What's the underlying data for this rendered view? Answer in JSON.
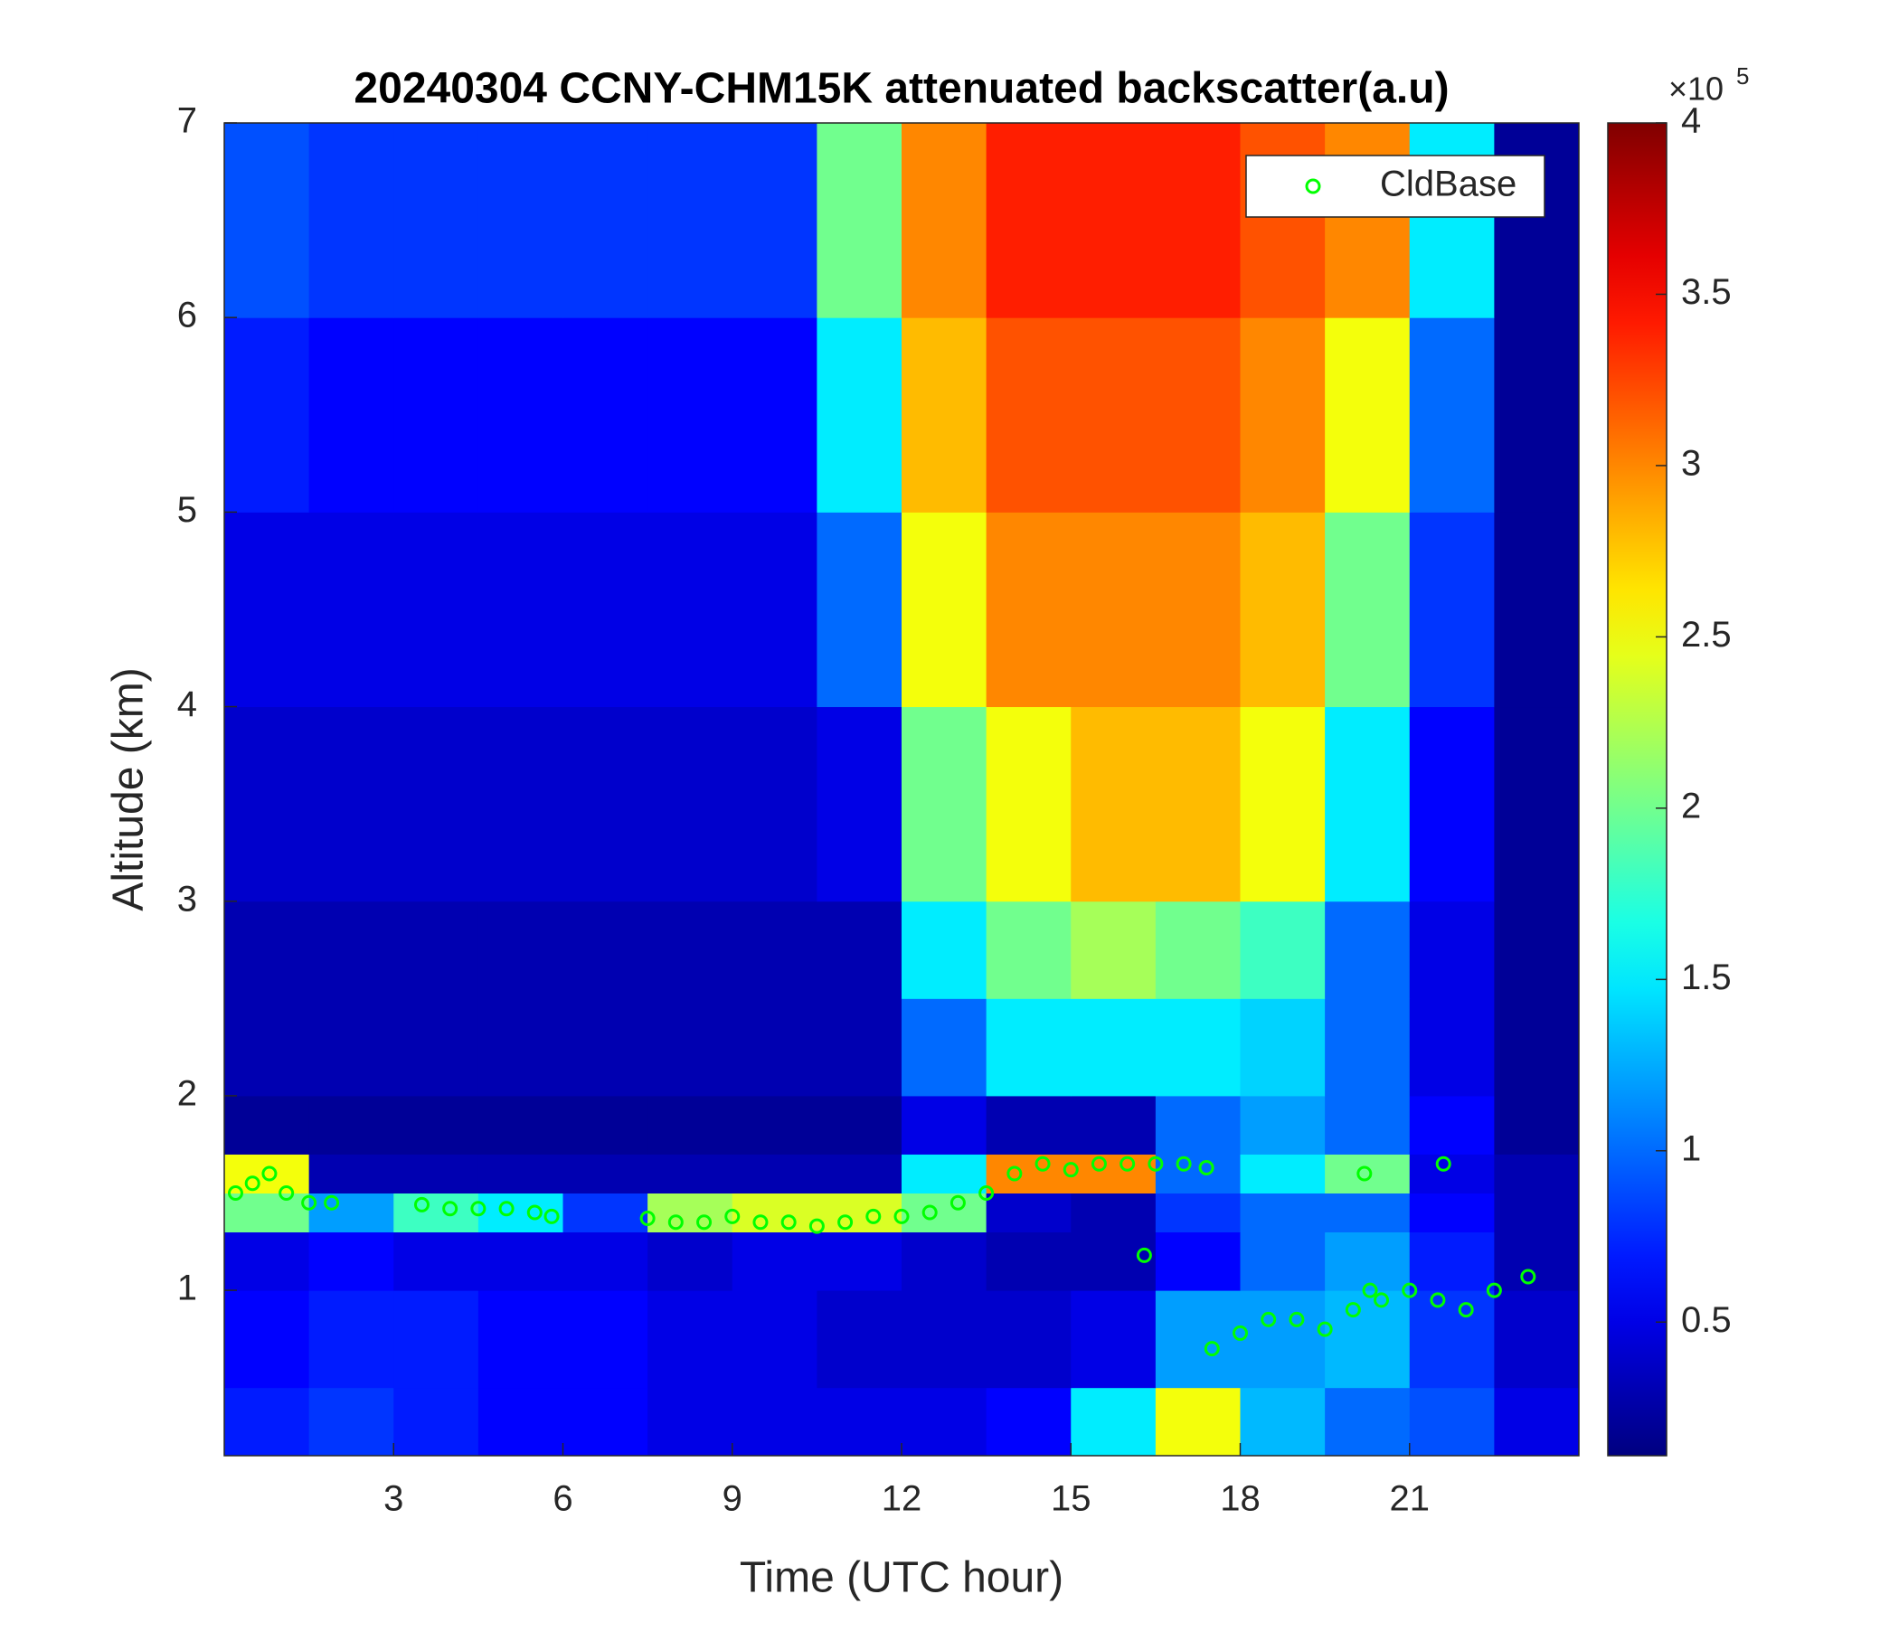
{
  "chart_data": {
    "type": "heatmap",
    "title": "20240304 CCNY-CHM15K attenuated backscatter(a.u)",
    "x_label": "Time (UTC hour)",
    "y_label": "Altitude (km)",
    "xlim": [
      0,
      24
    ],
    "xticks": [
      3,
      6,
      9,
      12,
      15,
      18,
      21
    ],
    "ylim": [
      0.15,
      7
    ],
    "yticks": [
      1,
      2,
      3,
      4,
      5,
      6,
      7
    ],
    "colormap": "jet",
    "clim": [
      0.11,
      4
    ],
    "cticks": [
      0.5,
      1,
      1.5,
      2,
      2.5,
      3,
      3.5,
      4
    ],
    "colorbar_multiplier": "×10",
    "colorbar_exponent": "5",
    "x_edges": [
      0,
      1.5,
      3,
      4.5,
      6,
      7.5,
      9,
      10.5,
      12,
      13.5,
      15,
      16.5,
      18,
      19.5,
      21,
      22.5,
      24
    ],
    "y_edges": [
      0.15,
      0.5,
      1,
      1.3,
      1.5,
      1.7,
      2,
      2.5,
      3,
      4,
      5,
      6,
      7
    ],
    "z": [
      [
        0.7,
        0.8,
        0.7,
        0.6,
        0.6,
        0.5,
        0.5,
        0.5,
        0.5,
        0.6,
        1.5,
        2.5,
        1.3,
        1.0,
        0.9,
        0.5
      ],
      [
        0.6,
        0.7,
        0.7,
        0.6,
        0.6,
        0.5,
        0.5,
        0.4,
        0.4,
        0.4,
        0.5,
        1.2,
        1.2,
        1.3,
        0.8,
        0.4
      ],
      [
        0.5,
        0.6,
        0.5,
        0.5,
        0.5,
        0.4,
        0.5,
        0.5,
        0.4,
        0.3,
        0.3,
        0.6,
        1.0,
        1.2,
        0.7,
        0.3
      ],
      [
        2.0,
        1.2,
        1.8,
        1.5,
        0.8,
        2.2,
        2.4,
        2.4,
        2.0,
        0.4,
        0.3,
        0.8,
        1.0,
        1.0,
        0.6,
        0.3
      ],
      [
        2.5,
        0.3,
        0.3,
        0.3,
        0.3,
        0.3,
        0.3,
        0.3,
        1.5,
        3.0,
        3.0,
        1.0,
        1.5,
        2.0,
        0.5,
        0.3
      ],
      [
        0.2,
        0.2,
        0.2,
        0.2,
        0.2,
        0.2,
        0.2,
        0.2,
        0.5,
        0.3,
        0.3,
        1.0,
        1.2,
        1.0,
        0.6,
        0.2
      ],
      [
        0.3,
        0.3,
        0.3,
        0.3,
        0.3,
        0.3,
        0.3,
        0.3,
        1.0,
        1.5,
        1.5,
        1.5,
        1.4,
        1.0,
        0.5,
        0.2
      ],
      [
        0.3,
        0.3,
        0.3,
        0.3,
        0.3,
        0.3,
        0.3,
        0.3,
        1.5,
        2.0,
        2.2,
        2.0,
        1.8,
        1.0,
        0.5,
        0.2
      ],
      [
        0.4,
        0.4,
        0.4,
        0.4,
        0.4,
        0.4,
        0.4,
        0.5,
        2.0,
        2.5,
        2.8,
        2.8,
        2.5,
        1.5,
        0.6,
        0.2
      ],
      [
        0.5,
        0.5,
        0.5,
        0.5,
        0.5,
        0.5,
        0.5,
        1.0,
        2.5,
        3.0,
        3.0,
        3.0,
        2.8,
        2.0,
        0.8,
        0.2
      ],
      [
        0.7,
        0.6,
        0.6,
        0.6,
        0.6,
        0.6,
        0.6,
        1.5,
        2.8,
        3.2,
        3.2,
        3.2,
        3.0,
        2.5,
        1.0,
        0.2
      ],
      [
        0.9,
        0.8,
        0.8,
        0.8,
        0.8,
        0.8,
        0.8,
        2.0,
        3.0,
        3.4,
        3.4,
        3.4,
        3.2,
        3.0,
        1.5,
        0.2
      ]
    ],
    "series": [
      {
        "name": "CldBase",
        "color": "#00ff00",
        "type": "scatter",
        "x": [
          0.2,
          0.5,
          0.8,
          1.1,
          1.5,
          1.9,
          3.5,
          4,
          4.5,
          5,
          5.5,
          5.8,
          7.5,
          8,
          8.5,
          9,
          9.5,
          10,
          10.5,
          11,
          11.5,
          12,
          12.5,
          13,
          13.5,
          14,
          14.5,
          15,
          15.5,
          16,
          16.5,
          17,
          17.4,
          16.3,
          17.5,
          18,
          18.5,
          19,
          19.5,
          20,
          20.3,
          20.5,
          21,
          21.5,
          22,
          22.5,
          23.1,
          20.2,
          21.6
        ],
        "values": [
          1.5,
          1.55,
          1.6,
          1.5,
          1.45,
          1.45,
          1.44,
          1.42,
          1.42,
          1.42,
          1.4,
          1.38,
          1.37,
          1.35,
          1.35,
          1.38,
          1.35,
          1.35,
          1.33,
          1.35,
          1.38,
          1.38,
          1.4,
          1.45,
          1.5,
          1.6,
          1.65,
          1.62,
          1.65,
          1.65,
          1.65,
          1.65,
          1.63,
          1.18,
          0.7,
          0.78,
          0.85,
          0.85,
          0.8,
          0.9,
          1.0,
          0.95,
          1.0,
          0.95,
          0.9,
          1.0,
          1.07,
          1.6,
          1.65
        ]
      }
    ],
    "legend": "top-right"
  }
}
